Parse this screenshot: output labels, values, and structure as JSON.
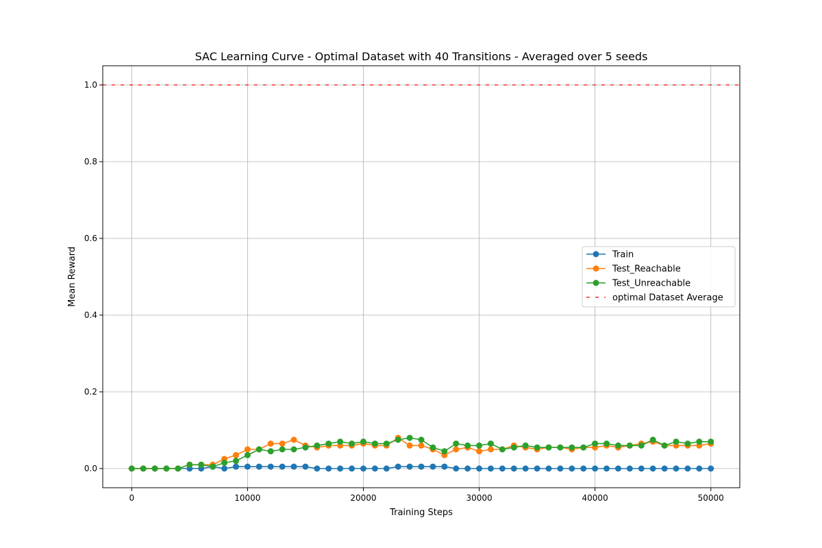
{
  "chart_data": {
    "type": "line",
    "title": "SAC Learning Curve - Optimal Dataset with 40 Transitions - Averaged over 5 seeds",
    "xlabel": "Training Steps",
    "ylabel": "Mean Reward",
    "xlim": [
      -2500,
      52500
    ],
    "ylim": [
      -0.05,
      1.05
    ],
    "xticks": [
      0,
      10000,
      20000,
      30000,
      40000,
      50000
    ],
    "yticks": [
      0.0,
      0.2,
      0.4,
      0.6,
      0.8,
      1.0
    ],
    "xtick_labels": [
      "0",
      "10000",
      "20000",
      "30000",
      "40000",
      "50000"
    ],
    "ytick_labels": [
      "0.0",
      "0.2",
      "0.4",
      "0.6",
      "0.8",
      "1.0"
    ],
    "grid": true,
    "legend_position": "center-right",
    "x": [
      0,
      1000,
      2000,
      3000,
      4000,
      5000,
      6000,
      7000,
      8000,
      9000,
      10000,
      11000,
      12000,
      13000,
      14000,
      15000,
      16000,
      17000,
      18000,
      19000,
      20000,
      21000,
      22000,
      23000,
      24000,
      25000,
      26000,
      27000,
      28000,
      29000,
      30000,
      31000,
      32000,
      33000,
      34000,
      35000,
      36000,
      37000,
      38000,
      39000,
      40000,
      41000,
      42000,
      43000,
      44000,
      45000,
      46000,
      47000,
      48000,
      49000,
      50000
    ],
    "series": [
      {
        "name": "Train",
        "color": "#1f77b4",
        "values": [
          0,
          0,
          0,
          0,
          0,
          0,
          0,
          0.005,
          0,
          0.005,
          0.005,
          0.005,
          0.005,
          0.005,
          0.005,
          0.005,
          0,
          0,
          0,
          0,
          0,
          0,
          0,
          0.005,
          0.005,
          0.005,
          0.005,
          0.005,
          0,
          0,
          0,
          0,
          0,
          0,
          0,
          0,
          0,
          0,
          0,
          0,
          0,
          0,
          0,
          0,
          0,
          0,
          0,
          0,
          0,
          0,
          0
        ]
      },
      {
        "name": "Test_Reachable",
        "color": "#ff7f0e",
        "values": [
          0,
          0,
          0,
          0,
          0,
          0.01,
          0.01,
          0.01,
          0.025,
          0.035,
          0.05,
          0.05,
          0.065,
          0.065,
          0.075,
          0.06,
          0.055,
          0.06,
          0.06,
          0.06,
          0.065,
          0.06,
          0.06,
          0.08,
          0.06,
          0.06,
          0.05,
          0.035,
          0.05,
          0.055,
          0.045,
          0.05,
          0.05,
          0.06,
          0.055,
          0.05,
          0.055,
          0.055,
          0.05,
          0.055,
          0.055,
          0.06,
          0.055,
          0.06,
          0.065,
          0.07,
          0.06,
          0.06,
          0.06,
          0.06,
          0.065
        ]
      },
      {
        "name": "Test_Unreachable",
        "color": "#2ca02c",
        "values": [
          0,
          0,
          0,
          0,
          0,
          0.01,
          0.01,
          0.005,
          0.015,
          0.02,
          0.035,
          0.05,
          0.045,
          0.05,
          0.05,
          0.055,
          0.06,
          0.065,
          0.07,
          0.065,
          0.07,
          0.065,
          0.065,
          0.075,
          0.08,
          0.075,
          0.055,
          0.045,
          0.065,
          0.06,
          0.06,
          0.065,
          0.05,
          0.055,
          0.06,
          0.055,
          0.055,
          0.055,
          0.055,
          0.055,
          0.065,
          0.065,
          0.06,
          0.06,
          0.06,
          0.075,
          0.06,
          0.07,
          0.065,
          0.07,
          0.07
        ]
      }
    ],
    "reference_line": {
      "name": "optimal Dataset Average",
      "y": 1.0,
      "color": "#ff0000",
      "style": "dashed"
    }
  }
}
